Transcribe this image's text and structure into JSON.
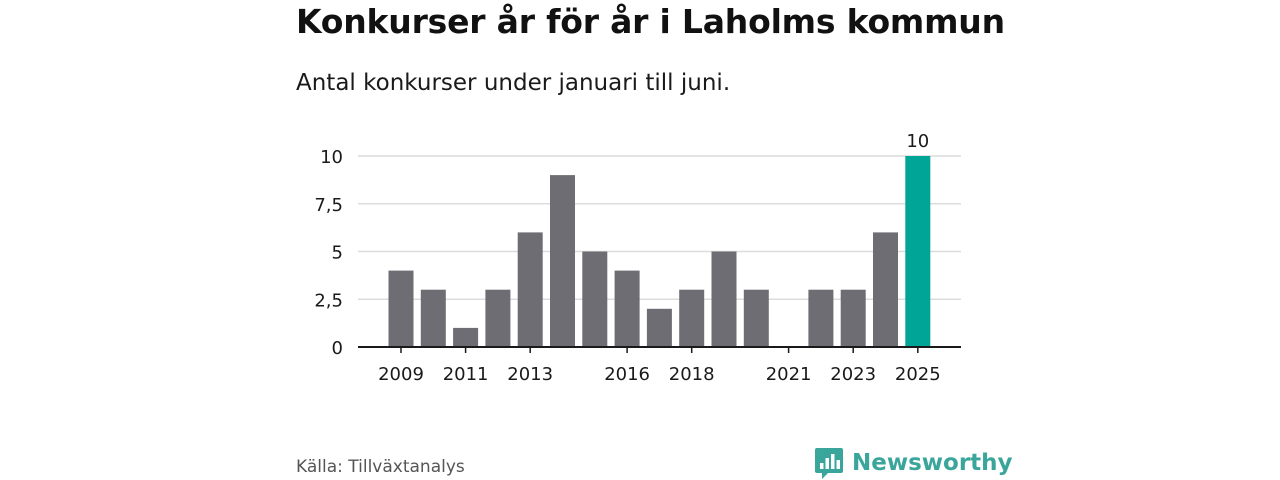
{
  "title": "Konkurser år för år i Laholms kommun",
  "subtitle": "Antal konkurser under januari till juni.",
  "source": "Källa: Tillväxtanalys",
  "brand": {
    "name": "Newsworthy",
    "icon": "newsworthy-logo-icon",
    "color": "#3aa69b"
  },
  "chart_data": {
    "type": "bar",
    "categories": [
      "2009",
      "2010",
      "2011",
      "2012",
      "2013",
      "2014",
      "2015",
      "2016",
      "2017",
      "2018",
      "2019",
      "2020",
      "2021",
      "2022",
      "2023",
      "2024",
      "2025"
    ],
    "values": [
      4,
      3,
      1,
      3,
      6,
      9,
      5,
      4,
      2,
      3,
      5,
      3,
      0,
      3,
      3,
      6,
      10
    ],
    "x_tick_labels": [
      "2009",
      "2011",
      "2013",
      "2016",
      "2018",
      "2021",
      "2023",
      "2025"
    ],
    "y_ticks": [
      0,
      2.5,
      5,
      7.5,
      10
    ],
    "y_tick_labels": [
      "0",
      "2,5",
      "5",
      "7,5",
      "10"
    ],
    "ylim": [
      0,
      10
    ],
    "grid": true,
    "highlight": {
      "category": "2025",
      "label": "10"
    },
    "colors": {
      "bar": "#6e6d73",
      "highlight": "#00a597",
      "grid": "#dcdcdc",
      "axis": "#1a1a1a"
    }
  }
}
